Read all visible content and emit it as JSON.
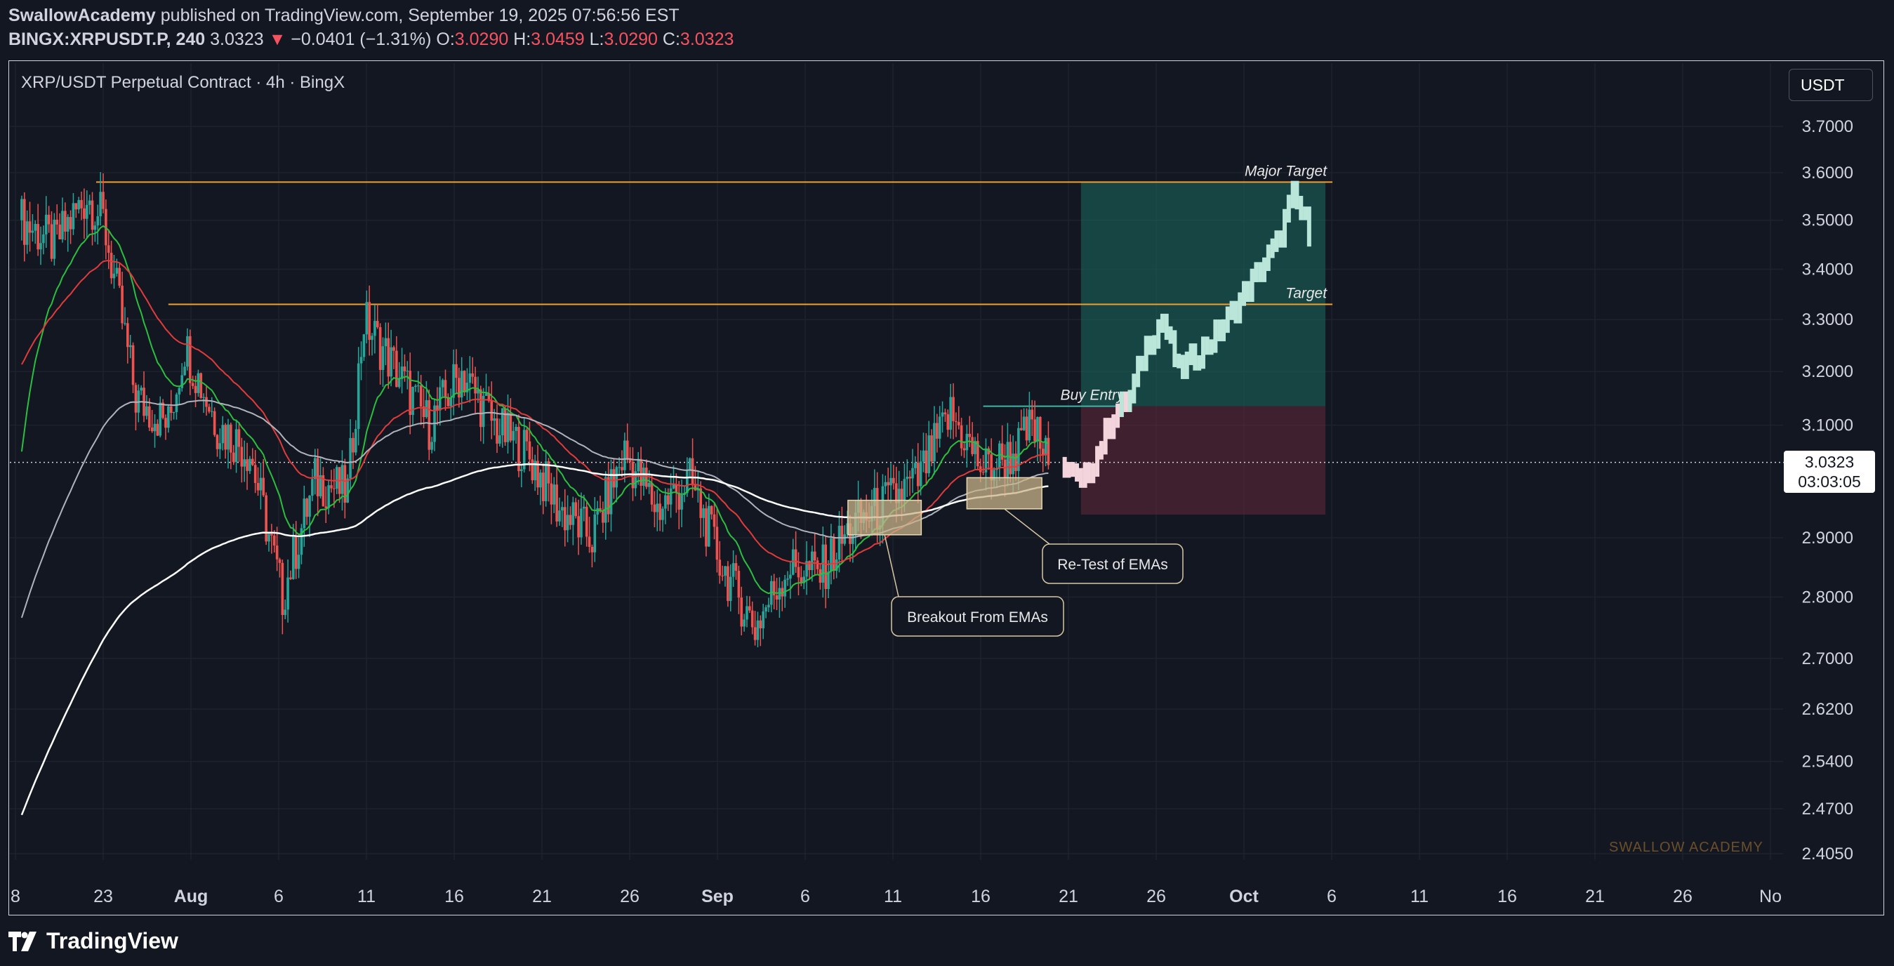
{
  "header": {
    "publisher": "SwallowAcademy",
    "published_text": " published on TradingView.com, September 19, 2025 07:56:56 EST",
    "symbol": "BINGX:XRPUSDT.P, 240",
    "last": "3.0323",
    "change": "−0.0401 (−1.31%)",
    "o_label": "O:",
    "o": "3.0290",
    "h_label": "H:",
    "h": "3.0459",
    "l_label": "L:",
    "l": "3.0290",
    "c_label": "C:",
    "c": "3.0323"
  },
  "chart_title": "XRP/USDT Perpetual Contract · 4h · BingX",
  "unit_badge": "USDT",
  "price_badge": {
    "price": "3.0323",
    "countdown": "03:03:05"
  },
  "brand": "TradingView",
  "watermark": "SWALLOW ACADEMY",
  "colors": {
    "bg": "#131722",
    "up": "#26a69a",
    "down": "#ef5350",
    "target_line": "#f0a030",
    "accent_green": "#1a4a45",
    "accent_red": "#4a2030"
  },
  "chart_data": {
    "type": "candlestick",
    "title": "XRP/USDT Perpetual Contract · 4h · BingX",
    "y_axis": {
      "scale": "log",
      "ticks": [
        "3.7000",
        "3.6000",
        "3.5000",
        "3.4000",
        "3.3000",
        "3.2000",
        "3.1000",
        "2.9000",
        "2.8000",
        "2.7000",
        "2.6200",
        "2.5400",
        "2.4700",
        "2.4050"
      ]
    },
    "x_axis": {
      "ticks": [
        "8",
        "23",
        "Aug",
        "6",
        "11",
        "16",
        "21",
        "26",
        "Sep",
        "6",
        "11",
        "16",
        "21",
        "26",
        "Oct",
        "6",
        "11",
        "16",
        "21",
        "26",
        "No"
      ]
    },
    "price_path": [
      {
        "date": "Jul 18",
        "price": 3.5
      },
      {
        "date": "Jul 20",
        "price": 3.45
      },
      {
        "date": "Jul 22",
        "price": 3.55
      },
      {
        "date": "Jul 23",
        "price": 3.5
      },
      {
        "date": "Jul 25",
        "price": 3.15
      },
      {
        "date": "Jul 27",
        "price": 3.1
      },
      {
        "date": "Jul 28",
        "price": 3.25
      },
      {
        "date": "Jul 30",
        "price": 3.1
      },
      {
        "date": "Aug 1",
        "price": 3.05
      },
      {
        "date": "Aug 3",
        "price": 2.8
      },
      {
        "date": "Aug 5",
        "price": 3.0
      },
      {
        "date": "Aug 7",
        "price": 2.98
      },
      {
        "date": "Aug 8",
        "price": 3.3
      },
      {
        "date": "Aug 10",
        "price": 3.2
      },
      {
        "date": "Aug 12",
        "price": 3.1
      },
      {
        "date": "Aug 14",
        "price": 3.2
      },
      {
        "date": "Aug 16",
        "price": 3.1
      },
      {
        "date": "Aug 18",
        "price": 3.05
      },
      {
        "date": "Aug 20",
        "price": 2.95
      },
      {
        "date": "Aug 22",
        "price": 2.9
      },
      {
        "date": "Aug 24",
        "price": 3.05
      },
      {
        "date": "Aug 26",
        "price": 2.95
      },
      {
        "date": "Aug 28",
        "price": 3.0
      },
      {
        "date": "Aug 30",
        "price": 2.85
      },
      {
        "date": "Sep 1",
        "price": 2.75
      },
      {
        "date": "Sep 3",
        "price": 2.85
      },
      {
        "date": "Sep 5",
        "price": 2.84
      },
      {
        "date": "Sep 7",
        "price": 2.92
      },
      {
        "date": "Sep 9",
        "price": 2.96
      },
      {
        "date": "Sep 11",
        "price": 3.0
      },
      {
        "date": "Sep 13",
        "price": 3.12
      },
      {
        "date": "Sep 15",
        "price": 3.02
      },
      {
        "date": "Sep 17",
        "price": 3.05
      },
      {
        "date": "Sep 18",
        "price": 3.1
      },
      {
        "date": "Sep 19",
        "price": 3.03
      }
    ],
    "projection_path": [
      {
        "date": "Sep 20",
        "price": 3.03
      },
      {
        "date": "Sep 21",
        "price": 2.99
      },
      {
        "date": "Sep 22",
        "price": 3.05
      },
      {
        "date": "Sep 23",
        "price": 3.12
      },
      {
        "date": "Sep 24",
        "price": 3.15
      },
      {
        "date": "Sep 25",
        "price": 3.25
      },
      {
        "date": "Sep 26",
        "price": 3.3
      },
      {
        "date": "Sep 27",
        "price": 3.2
      },
      {
        "date": "Sep 29",
        "price": 3.26
      },
      {
        "date": "Sep 30",
        "price": 3.3
      },
      {
        "date": "Oct 1",
        "price": 3.35
      },
      {
        "date": "Oct 2",
        "price": 3.4
      },
      {
        "date": "Oct 3",
        "price": 3.45
      },
      {
        "date": "Oct 4",
        "price": 3.55
      },
      {
        "date": "Oct 5",
        "price": 3.48
      }
    ],
    "levels": [
      {
        "label": "Major Target",
        "price": 3.58
      },
      {
        "label": "Target",
        "price": 3.33
      },
      {
        "label": "Buy Entry",
        "price": 3.135
      }
    ],
    "position": {
      "entry": 3.135,
      "stop": 2.94,
      "target": 3.58,
      "start": "Sep 21",
      "end": "Oct 6"
    },
    "annotations": [
      {
        "text": "Breakout From EMAs",
        "date": "Sep 9",
        "price": 2.93
      },
      {
        "text": "Re-Test of EMAs",
        "date": "Sep 15",
        "price": 2.97
      }
    ],
    "current_price": 3.0323
  }
}
